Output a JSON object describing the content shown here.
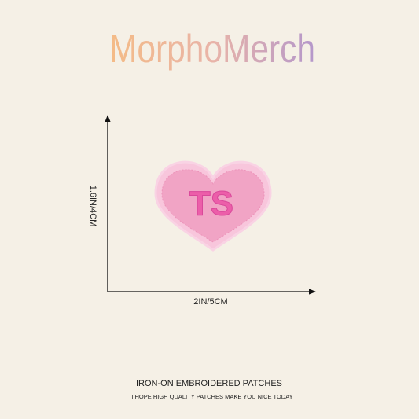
{
  "brand": "MorphoMerch",
  "product": {
    "patch_text": "TS"
  },
  "dimensions": {
    "height": "1.6IN/4CM",
    "width": "2IN/5CM"
  },
  "footer": {
    "title": "IRON-ON EMBROIDERED PATCHES",
    "subtitle": "I HOPE HIGH QUALITY PATCHES MAKE YOU NICE TODAY"
  }
}
